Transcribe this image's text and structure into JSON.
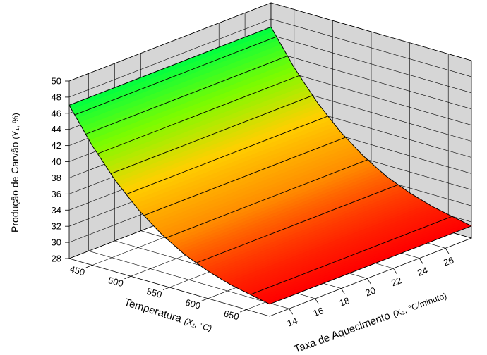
{
  "chart_data": {
    "type": "surface3d",
    "z_axis": {
      "label_main": "Produção de Carvão",
      "label_unit": "(Y₁, %)",
      "ticks": [
        28,
        30,
        32,
        34,
        36,
        38,
        40,
        42,
        44,
        46,
        48,
        50
      ],
      "range": [
        28,
        50
      ]
    },
    "x1_axis": {
      "label_main": "Temperatura",
      "label_unit": "(X₁, °C)",
      "ticks": [
        450,
        500,
        550,
        600,
        650
      ],
      "range": [
        420,
        680
      ]
    },
    "x2_axis": {
      "label_main": "Taxa de Aquecimento",
      "label_unit": "(X₂, °C/minuto)",
      "ticks": [
        14,
        16,
        18,
        20,
        22,
        24,
        26
      ],
      "range": [
        12.5,
        28
      ]
    },
    "surface": {
      "temperature": [
        420,
        450,
        480,
        510,
        540,
        570,
        600,
        630,
        660,
        680
      ],
      "heating_rate": [
        12.5,
        28
      ],
      "yield": [
        47.0,
        42.8,
        39.3,
        36.5,
        34.3,
        32.6,
        31.4,
        30.5,
        29.9,
        29.5
      ]
    },
    "contour_levels": [
      30,
      32,
      34,
      36,
      38,
      40,
      42,
      44,
      46,
      48
    ],
    "colorscale": [
      "#ff0000",
      "#ff8c00",
      "#ffd000",
      "#7cfc00",
      "#00ff40"
    ],
    "grid": true
  }
}
